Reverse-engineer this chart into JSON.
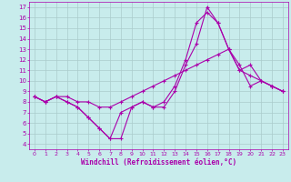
{
  "xlabel": "Windchill (Refroidissement éolien,°C)",
  "background_color": "#c8ecec",
  "line_color": "#aa00aa",
  "grid_color": "#aacccc",
  "xlim": [
    -0.5,
    23.5
  ],
  "ylim": [
    3.5,
    17.5
  ],
  "yticks": [
    4,
    5,
    6,
    7,
    8,
    9,
    10,
    11,
    12,
    13,
    14,
    15,
    16,
    17
  ],
  "xticks": [
    0,
    1,
    2,
    3,
    4,
    5,
    6,
    7,
    8,
    9,
    10,
    11,
    12,
    13,
    14,
    15,
    16,
    17,
    18,
    19,
    20,
    21,
    22,
    23
  ],
  "line1_x": [
    0,
    1,
    2,
    3,
    4,
    5,
    6,
    7,
    8,
    9,
    10,
    11,
    12,
    13,
    14,
    15,
    16,
    17,
    18,
    19,
    20,
    21,
    22,
    23
  ],
  "line1_y": [
    8.5,
    8.0,
    8.5,
    8.0,
    7.5,
    6.5,
    5.5,
    4.5,
    4.5,
    7.5,
    8.0,
    7.5,
    7.5,
    9.0,
    11.5,
    13.5,
    17.0,
    15.5,
    13.0,
    11.5,
    9.5,
    10.0,
    9.5,
    9.0
  ],
  "line2_x": [
    0,
    1,
    2,
    3,
    4,
    5,
    6,
    7,
    8,
    9,
    10,
    11,
    12,
    13,
    14,
    15,
    16,
    17,
    18,
    19,
    20,
    21,
    22,
    23
  ],
  "line2_y": [
    8.5,
    8.0,
    8.5,
    8.0,
    7.5,
    6.5,
    5.5,
    4.5,
    7.0,
    7.5,
    8.0,
    7.5,
    8.0,
    9.5,
    12.0,
    15.5,
    16.5,
    15.5,
    13.0,
    11.0,
    11.5,
    10.0,
    9.5,
    9.0
  ],
  "line3_x": [
    0,
    1,
    2,
    3,
    4,
    5,
    6,
    7,
    8,
    9,
    10,
    11,
    12,
    13,
    14,
    15,
    16,
    17,
    18,
    19,
    20,
    21,
    22,
    23
  ],
  "line3_y": [
    8.5,
    8.0,
    8.5,
    8.5,
    8.0,
    8.0,
    7.5,
    7.5,
    8.0,
    8.5,
    9.0,
    9.5,
    10.0,
    10.5,
    11.0,
    11.5,
    12.0,
    12.5,
    13.0,
    11.0,
    10.5,
    10.0,
    9.5,
    9.0
  ],
  "xlabel_fontsize": 5.5,
  "tick_fontsize_x": 4.5,
  "tick_fontsize_y": 5.0
}
